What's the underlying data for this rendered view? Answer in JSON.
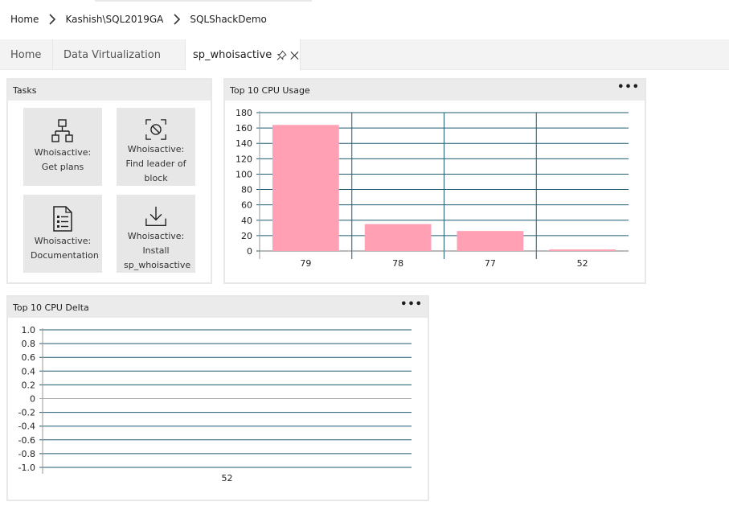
{
  "breadcrumb": {
    "items": [
      "Home",
      "Kashish\\SQL2019GA",
      "SQLShackDemo"
    ]
  },
  "tabs": [
    {
      "label": "Home"
    },
    {
      "label": "Data Virtualization"
    },
    {
      "label": "sp_whoisactive"
    }
  ],
  "tasks": {
    "title": "Tasks",
    "tiles": [
      {
        "label": "Whoisactive: Get plans",
        "icon": "hierarchy-icon"
      },
      {
        "label": "Whoisactive: Find leader of block",
        "icon": "block-icon"
      },
      {
        "label": "Whoisactive: Documentation",
        "icon": "document-icon"
      },
      {
        "label": "Whoisactive: Install sp_whoisactive",
        "icon": "download-icon"
      }
    ]
  },
  "cpu_usage": {
    "title": "Top 10 CPU Usage",
    "more": "•••"
  },
  "cpu_delta": {
    "title": "Top 10 CPU Delta",
    "more": "•••"
  },
  "chart_data": [
    {
      "type": "bar",
      "title": "Top 10 CPU Usage",
      "categories": [
        "79",
        "78",
        "77",
        "52"
      ],
      "values": [
        164,
        35,
        26,
        2
      ],
      "ylim": [
        0,
        180
      ],
      "yticks": [
        0,
        20,
        40,
        60,
        80,
        100,
        120,
        140,
        160,
        180
      ],
      "grid": true,
      "bar_color": "#ffa0b4",
      "grid_color": "#1f5b73"
    },
    {
      "type": "bar",
      "title": "Top 10 CPU Delta",
      "categories": [
        "52"
      ],
      "values": [
        0
      ],
      "ylim": [
        -1.0,
        1.0
      ],
      "yticks": [
        "1.0",
        "0.8",
        "0.6",
        "0.4",
        "0.2",
        "0",
        "-0.2",
        "-0.4",
        "-0.6",
        "-0.8",
        "-1.0"
      ],
      "grid": true,
      "bar_color": "#ffa0b4",
      "grid_color": "#1f5b73"
    }
  ]
}
